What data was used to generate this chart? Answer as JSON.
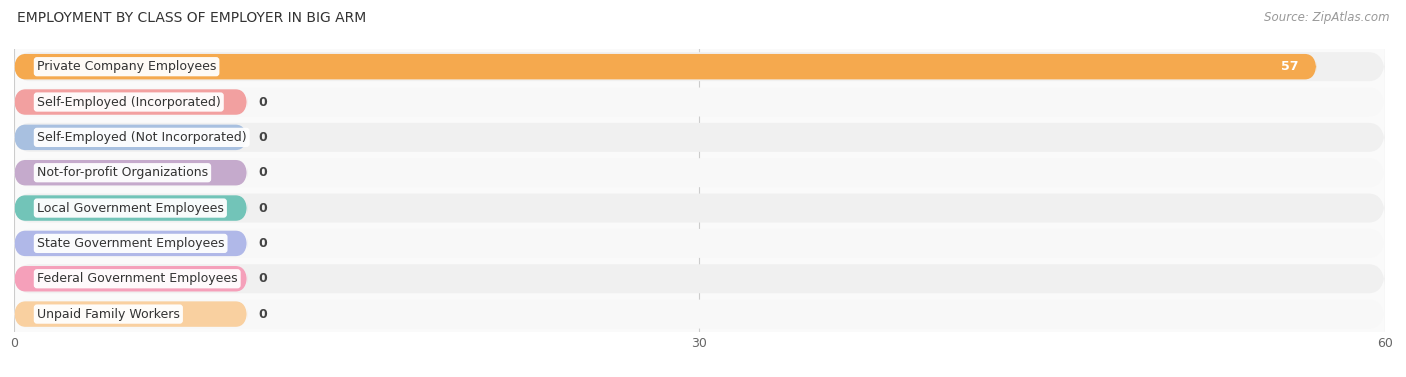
{
  "title": "EMPLOYMENT BY CLASS OF EMPLOYER IN BIG ARM",
  "source": "Source: ZipAtlas.com",
  "categories": [
    "Private Company Employees",
    "Self-Employed (Incorporated)",
    "Self-Employed (Not Incorporated)",
    "Not-for-profit Organizations",
    "Local Government Employees",
    "State Government Employees",
    "Federal Government Employees",
    "Unpaid Family Workers"
  ],
  "values": [
    57,
    0,
    0,
    0,
    0,
    0,
    0,
    0
  ],
  "bar_colors": [
    "#F5A94E",
    "#F2A0A0",
    "#A8C0E0",
    "#C5AACC",
    "#72C4B8",
    "#B0B8E8",
    "#F5A0BA",
    "#F9D0A0"
  ],
  "xlim": [
    0,
    60
  ],
  "xticks": [
    0,
    30,
    60
  ],
  "title_fontsize": 10,
  "source_fontsize": 8.5,
  "label_fontsize": 9,
  "value_fontsize": 9,
  "tick_fontsize": 9,
  "bar_height": 0.72,
  "figsize": [
    14.06,
    3.77
  ],
  "row_odd_color": "#EFEFEF",
  "row_even_color": "#F8F8F8",
  "bg_color": "#F5F5F5"
}
